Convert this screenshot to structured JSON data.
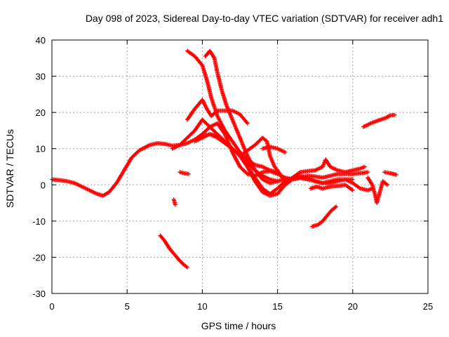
{
  "chart_data": {
    "type": "scatter",
    "title": "Day 098 of 2023, Sidereal Day-to-day VTEC variation (SDTVAR) for receiver adh1",
    "xlabel": "GPS time / hours",
    "ylabel": "SDTVAR / TECUs",
    "xlim": [
      0,
      25
    ],
    "ylim": [
      -30,
      40
    ],
    "xticks": [
      0,
      5,
      10,
      15,
      20,
      25
    ],
    "yticks": [
      -30,
      -20,
      -10,
      0,
      10,
      20,
      30,
      40
    ],
    "grid": true,
    "marker": "+",
    "color": "#ff0000",
    "series": [
      {
        "name": "main",
        "points": [
          [
            0,
            1.5
          ],
          [
            0.5,
            1.3
          ],
          [
            1,
            1.0
          ],
          [
            1.5,
            0.5
          ],
          [
            2,
            -0.5
          ],
          [
            2.5,
            -1.5
          ],
          [
            3,
            -2.5
          ],
          [
            3.4,
            -3
          ],
          [
            3.8,
            -2
          ],
          [
            4.3,
            0.5
          ],
          [
            4.8,
            4
          ],
          [
            5.3,
            7.5
          ],
          [
            5.8,
            9.5
          ],
          [
            6.5,
            11
          ],
          [
            7,
            11.5
          ],
          [
            7.5,
            11.3
          ],
          [
            8,
            10.8
          ],
          [
            8.5,
            11
          ],
          [
            9,
            11.5
          ],
          [
            9.5,
            12.5
          ],
          [
            10,
            14
          ],
          [
            10.5,
            16
          ],
          [
            11,
            17
          ],
          [
            11.5,
            14
          ],
          [
            12,
            9
          ],
          [
            12.5,
            5
          ],
          [
            13,
            3
          ],
          [
            13.5,
            2.5
          ],
          [
            14,
            3.5
          ],
          [
            14.5,
            3.8
          ],
          [
            15,
            3
          ],
          [
            15.5,
            2
          ],
          [
            16,
            1.5
          ],
          [
            16.5,
            2
          ],
          [
            17,
            2.5
          ],
          [
            17.5,
            2.3
          ],
          [
            18,
            2
          ],
          [
            18.5,
            2.5
          ],
          [
            19,
            3
          ],
          [
            19.5,
            3
          ],
          [
            20,
            3
          ],
          [
            20.5,
            3.2
          ],
          [
            21,
            3.5
          ]
        ]
      },
      {
        "name": "arc-a",
        "points": [
          [
            9.5,
            12
          ],
          [
            10,
            13
          ],
          [
            10.5,
            14
          ],
          [
            11,
            13.5
          ],
          [
            11.5,
            12
          ],
          [
            12,
            10
          ],
          [
            12.5,
            8
          ],
          [
            13,
            6
          ],
          [
            13.5,
            4
          ],
          [
            14,
            2.5
          ],
          [
            14.5,
            1.5
          ],
          [
            15,
            1
          ],
          [
            15.5,
            1.5
          ],
          [
            16,
            1.8
          ],
          [
            16.5,
            2
          ],
          [
            17,
            1.5
          ],
          [
            17.5,
            1
          ],
          [
            18,
            0.5
          ],
          [
            18.5,
            0.5
          ],
          [
            19,
            1
          ],
          [
            19.5,
            1.5
          ],
          [
            20,
            1.5
          ]
        ]
      },
      {
        "name": "arc-b",
        "points": [
          [
            8,
            10
          ],
          [
            8.5,
            11
          ],
          [
            9,
            13
          ],
          [
            9.5,
            15
          ],
          [
            10,
            18
          ],
          [
            10.5,
            16
          ],
          [
            11,
            14
          ],
          [
            11.5,
            12
          ],
          [
            12,
            10
          ],
          [
            12.5,
            8
          ],
          [
            13,
            5
          ],
          [
            13.5,
            2
          ],
          [
            14,
            -1
          ],
          [
            14.5,
            -2.5
          ],
          [
            15,
            -1
          ],
          [
            15.5,
            1
          ],
          [
            16,
            2
          ],
          [
            16.5,
            2.5
          ],
          [
            17,
            2
          ],
          [
            17.5,
            1
          ],
          [
            18,
            0.5
          ],
          [
            18.5,
            1
          ],
          [
            19,
            1.5
          ],
          [
            19.5,
            1.5
          ],
          [
            20,
            0.5
          ],
          [
            20.5,
            -1
          ],
          [
            21,
            -1.5
          ],
          [
            21.3,
            -1
          ]
        ]
      },
      {
        "name": "arc-c",
        "points": [
          [
            9.5,
            12.5
          ],
          [
            10,
            13.5
          ],
          [
            10.5,
            14
          ],
          [
            11,
            13
          ],
          [
            11.5,
            11.5
          ],
          [
            12,
            10
          ],
          [
            12.5,
            8
          ],
          [
            13,
            5
          ],
          [
            13.5,
            1
          ],
          [
            14,
            -2
          ],
          [
            14.5,
            -3
          ],
          [
            15,
            -2.5
          ],
          [
            15.5,
            0
          ],
          [
            16,
            1.5
          ],
          [
            16.5,
            2
          ],
          [
            17,
            1.5
          ]
        ]
      },
      {
        "name": "spike-1",
        "points": [
          [
            9,
            37
          ],
          [
            9.5,
            35.5
          ],
          [
            10,
            33
          ],
          [
            10.3,
            29
          ],
          [
            10.6,
            24
          ],
          [
            11,
            19
          ],
          [
            11.5,
            15
          ],
          [
            12,
            12
          ],
          [
            12.5,
            9
          ],
          [
            13,
            7
          ],
          [
            13.5,
            5.5
          ],
          [
            14,
            5
          ],
          [
            14.5,
            4
          ],
          [
            15,
            3.5
          ]
        ]
      },
      {
        "name": "spike-2",
        "points": [
          [
            10.2,
            35.5
          ],
          [
            10.5,
            37
          ],
          [
            10.8,
            35
          ],
          [
            11,
            31
          ],
          [
            11.3,
            26
          ],
          [
            11.6,
            22
          ],
          [
            12,
            18
          ],
          [
            12.5,
            13
          ],
          [
            13,
            8
          ],
          [
            13.5,
            4
          ],
          [
            14,
            1.5
          ],
          [
            14.5,
            0.5
          ],
          [
            15,
            1
          ]
        ]
      },
      {
        "name": "arc-d",
        "points": [
          [
            9,
            18
          ],
          [
            9.5,
            21
          ],
          [
            10,
            23.5
          ],
          [
            10.3,
            21
          ],
          [
            10.6,
            19
          ],
          [
            11,
            20.5
          ],
          [
            11.5,
            20.5
          ],
          [
            12,
            20.5
          ],
          [
            12.5,
            19.5
          ],
          [
            13,
            17
          ]
        ]
      },
      {
        "name": "arc-e",
        "points": [
          [
            12.5,
            8
          ],
          [
            13,
            9.5
          ],
          [
            13.5,
            11
          ],
          [
            14,
            13
          ],
          [
            14.3,
            12
          ],
          [
            14.5,
            8
          ],
          [
            14.8,
            5
          ],
          [
            15,
            4
          ],
          [
            15.3,
            2
          ]
        ]
      },
      {
        "name": "arc-f",
        "points": [
          [
            14,
            10
          ],
          [
            14.5,
            10.5
          ],
          [
            15,
            10
          ],
          [
            15.5,
            9
          ]
        ]
      },
      {
        "name": "low-left",
        "points": [
          [
            7.2,
            -14
          ],
          [
            7.5,
            -15.5
          ],
          [
            7.8,
            -17.5
          ],
          [
            8.1,
            -19
          ],
          [
            8.4,
            -20.5
          ],
          [
            8.7,
            -21.8
          ],
          [
            9,
            -22.8
          ]
        ]
      },
      {
        "name": "low-right",
        "points": [
          [
            17.3,
            -11.5
          ],
          [
            17.7,
            -11
          ],
          [
            18,
            -10
          ],
          [
            18.3,
            -8.5
          ],
          [
            18.6,
            -7
          ],
          [
            18.9,
            -6
          ]
        ]
      },
      {
        "name": "upper-right",
        "points": [
          [
            20.7,
            16
          ],
          [
            21.2,
            17
          ],
          [
            21.7,
            17.8
          ],
          [
            22.2,
            18.5
          ],
          [
            22.5,
            19.2
          ],
          [
            22.8,
            19.3
          ]
        ]
      },
      {
        "name": "short-mid",
        "points": [
          [
            8.5,
            3.5
          ],
          [
            8.8,
            3.2
          ],
          [
            9.1,
            3
          ]
        ]
      },
      {
        "name": "right-tail",
        "points": [
          [
            21,
            2
          ],
          [
            21.3,
            0
          ],
          [
            21.5,
            -3
          ],
          [
            21.6,
            -5
          ],
          [
            21.8,
            -2
          ],
          [
            22,
            1
          ],
          [
            22.3,
            0
          ]
        ]
      },
      {
        "name": "right-short",
        "points": [
          [
            22.1,
            3.5
          ],
          [
            22.5,
            3.2
          ],
          [
            22.9,
            2.8
          ]
        ]
      },
      {
        "name": "scatter-mid",
        "points": [
          [
            16,
            2
          ],
          [
            16.5,
            3.5
          ],
          [
            17,
            3.8
          ],
          [
            17.5,
            4
          ],
          [
            18,
            5
          ],
          [
            18.2,
            7
          ],
          [
            18.5,
            5
          ],
          [
            19,
            4
          ],
          [
            19.5,
            3.5
          ],
          [
            20,
            4
          ],
          [
            20.5,
            4.5
          ],
          [
            20.8,
            5
          ]
        ]
      },
      {
        "name": "scatter-mid-2",
        "points": [
          [
            17.2,
            -1
          ],
          [
            17.6,
            -0.5
          ],
          [
            18,
            -1
          ],
          [
            18.5,
            -0.5
          ],
          [
            19,
            -0.3
          ],
          [
            19.5,
            0
          ],
          [
            20,
            -1.5
          ]
        ]
      },
      {
        "name": "stub-1",
        "points": [
          [
            8.1,
            -4
          ],
          [
            8.2,
            -5.5
          ]
        ]
      }
    ]
  }
}
